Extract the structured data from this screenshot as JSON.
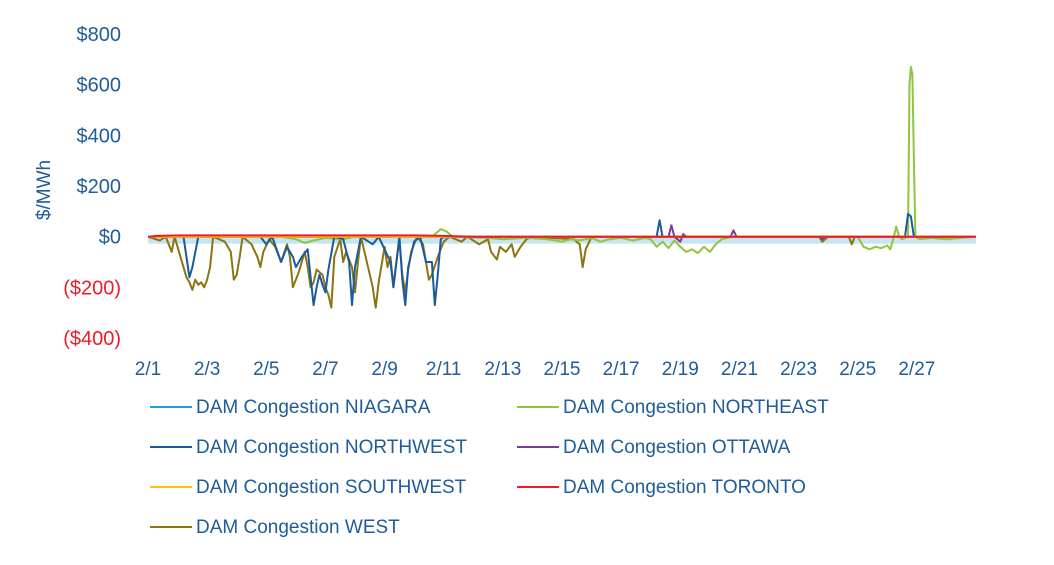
{
  "chart_data": {
    "type": "line",
    "ylabel": "$/MWh",
    "xlabel": "",
    "ylim": [
      -400,
      800
    ],
    "x_start_label": "2/1",
    "x_end_day": 29,
    "colors": {
      "positive_tick": "#1f5c99",
      "negative_tick": "#ee1c25",
      "axis_text": "#1f5c99",
      "zero_band": "#c6e4f2"
    },
    "yticks": [
      {
        "value": 800,
        "label": "$800"
      },
      {
        "value": 600,
        "label": "$600"
      },
      {
        "value": 400,
        "label": "$400"
      },
      {
        "value": 200,
        "label": "$200"
      },
      {
        "value": 0,
        "label": "$0"
      },
      {
        "value": -200,
        "label": "($200)"
      },
      {
        "value": -400,
        "label": "($400)"
      }
    ],
    "xticks": [
      {
        "day": 1,
        "label": "2/1"
      },
      {
        "day": 3,
        "label": "2/3"
      },
      {
        "day": 5,
        "label": "2/5"
      },
      {
        "day": 7,
        "label": "2/7"
      },
      {
        "day": 9,
        "label": "2/9"
      },
      {
        "day": 11,
        "label": "2/11"
      },
      {
        "day": 13,
        "label": "2/13"
      },
      {
        "day": 15,
        "label": "2/15"
      },
      {
        "day": 17,
        "label": "2/17"
      },
      {
        "day": 19,
        "label": "2/19"
      },
      {
        "day": 21,
        "label": "2/21"
      },
      {
        "day": 23,
        "label": "2/23"
      },
      {
        "day": 25,
        "label": "2/25"
      },
      {
        "day": 27,
        "label": "2/27"
      }
    ],
    "series": [
      {
        "name": "DAM Congestion NIAGARA",
        "color": "#1ea0e0",
        "points": [
          [
            1,
            0
          ],
          [
            11,
            0
          ],
          [
            11.1,
            -5
          ],
          [
            11.3,
            0
          ],
          [
            20,
            0
          ],
          [
            29,
            0
          ]
        ]
      },
      {
        "name": "DAM Congestion NORTHEAST",
        "color": "#8dc63f",
        "points": [
          [
            1,
            0
          ],
          [
            5.5,
            0
          ],
          [
            6,
            -10
          ],
          [
            6.3,
            -25
          ],
          [
            6.6,
            -15
          ],
          [
            7,
            -5
          ],
          [
            7.6,
            -10
          ],
          [
            8,
            0
          ],
          [
            10.6,
            0
          ],
          [
            10.9,
            30
          ],
          [
            11.1,
            20
          ],
          [
            11.3,
            0
          ],
          [
            12.5,
            -5
          ],
          [
            13,
            -10
          ],
          [
            13.8,
            -5
          ],
          [
            14.5,
            -10
          ],
          [
            15,
            -20
          ],
          [
            15.3,
            -10
          ],
          [
            15.6,
            -15
          ],
          [
            16,
            -5
          ],
          [
            16.3,
            -20
          ],
          [
            16.6,
            -10
          ],
          [
            17,
            -5
          ],
          [
            17.4,
            -15
          ],
          [
            17.8,
            -5
          ],
          [
            18,
            -10
          ],
          [
            18.2,
            -40
          ],
          [
            18.4,
            -20
          ],
          [
            18.6,
            -45
          ],
          [
            18.8,
            -15
          ],
          [
            19,
            -40
          ],
          [
            19.2,
            -60
          ],
          [
            19.4,
            -50
          ],
          [
            19.6,
            -65
          ],
          [
            19.8,
            -40
          ],
          [
            20,
            -60
          ],
          [
            20.2,
            -30
          ],
          [
            20.4,
            -10
          ],
          [
            20.8,
            0
          ],
          [
            25,
            0
          ],
          [
            25.2,
            -40
          ],
          [
            25.4,
            -50
          ],
          [
            25.6,
            -40
          ],
          [
            25.8,
            -45
          ],
          [
            26,
            -35
          ],
          [
            26.1,
            -50
          ],
          [
            26.2,
            -10
          ],
          [
            26.3,
            40
          ],
          [
            26.4,
            0
          ],
          [
            26.5,
            -10
          ],
          [
            26.6,
            -5
          ],
          [
            26.7,
            0
          ],
          [
            26.75,
            600
          ],
          [
            26.8,
            670
          ],
          [
            26.85,
            640
          ],
          [
            26.9,
            300
          ],
          [
            26.95,
            0
          ],
          [
            27.1,
            -10
          ],
          [
            27.5,
            -5
          ],
          [
            28,
            -10
          ],
          [
            28.5,
            -5
          ],
          [
            29,
            0
          ]
        ]
      },
      {
        "name": "DAM Congestion NORTHWEST",
        "color": "#1a5a9e",
        "points": [
          [
            1,
            0
          ],
          [
            2.2,
            0
          ],
          [
            2.4,
            -160
          ],
          [
            2.5,
            -120
          ],
          [
            2.7,
            0
          ],
          [
            4.8,
            0
          ],
          [
            5,
            -30
          ],
          [
            5.2,
            0
          ],
          [
            5.5,
            -100
          ],
          [
            5.7,
            -40
          ],
          [
            5.9,
            -80
          ],
          [
            6,
            -120
          ],
          [
            6.2,
            -80
          ],
          [
            6.4,
            -50
          ],
          [
            6.5,
            -160
          ],
          [
            6.6,
            -270
          ],
          [
            6.7,
            -200
          ],
          [
            6.8,
            -150
          ],
          [
            6.9,
            -190
          ],
          [
            7,
            -220
          ],
          [
            7.1,
            -130
          ],
          [
            7.3,
            0
          ],
          [
            7.6,
            -10
          ],
          [
            7.8,
            -100
          ],
          [
            7.9,
            -270
          ],
          [
            8,
            -120
          ],
          [
            8.2,
            0
          ],
          [
            8.6,
            -30
          ],
          [
            8.8,
            0
          ],
          [
            9.2,
            -100
          ],
          [
            9.3,
            -200
          ],
          [
            9.5,
            0
          ],
          [
            9.6,
            -170
          ],
          [
            9.7,
            -270
          ],
          [
            9.8,
            -120
          ],
          [
            10,
            -20
          ],
          [
            10.2,
            0
          ],
          [
            10.4,
            -100
          ],
          [
            10.6,
            -100
          ],
          [
            10.7,
            -270
          ],
          [
            10.8,
            -150
          ],
          [
            10.9,
            -10
          ],
          [
            11,
            0
          ],
          [
            18.2,
            0
          ],
          [
            18.3,
            65
          ],
          [
            18.4,
            0
          ],
          [
            26,
            0
          ],
          [
            26.6,
            0
          ],
          [
            26.7,
            90
          ],
          [
            26.8,
            80
          ],
          [
            26.9,
            0
          ],
          [
            29,
            0
          ]
        ]
      },
      {
        "name": "DAM Congestion OTTAWA",
        "color": "#7a3b98",
        "points": [
          [
            1,
            0
          ],
          [
            18.6,
            0
          ],
          [
            18.7,
            45
          ],
          [
            18.8,
            0
          ],
          [
            19,
            -20
          ],
          [
            19.1,
            10
          ],
          [
            19.2,
            0
          ],
          [
            20.7,
            0
          ],
          [
            20.8,
            25
          ],
          [
            20.9,
            0
          ],
          [
            23.7,
            0
          ],
          [
            23.8,
            -10
          ],
          [
            23.9,
            0
          ],
          [
            29,
            0
          ]
        ]
      },
      {
        "name": "DAM Congestion SOUTHWEST",
        "color": "#ffc20e",
        "points": [
          [
            1,
            0
          ],
          [
            29,
            0
          ]
        ]
      },
      {
        "name": "DAM Congestion TORONTO",
        "color": "#ee1c25",
        "points": [
          [
            1,
            0
          ],
          [
            1.3,
            3
          ],
          [
            2,
            5
          ],
          [
            3,
            5
          ],
          [
            4,
            5
          ],
          [
            5,
            5
          ],
          [
            6,
            5
          ],
          [
            7,
            5
          ],
          [
            8,
            5
          ],
          [
            9,
            5
          ],
          [
            10,
            5
          ],
          [
            11,
            3
          ],
          [
            12,
            0
          ],
          [
            29,
            0
          ]
        ]
      },
      {
        "name": "DAM Congestion WEST",
        "color": "#8b7512",
        "points": [
          [
            1,
            0
          ],
          [
            1.4,
            -15
          ],
          [
            1.6,
            0
          ],
          [
            1.8,
            -60
          ],
          [
            1.9,
            0
          ],
          [
            2.3,
            -160
          ],
          [
            2.4,
            -180
          ],
          [
            2.5,
            -210
          ],
          [
            2.6,
            -170
          ],
          [
            2.7,
            -190
          ],
          [
            2.8,
            -180
          ],
          [
            2.9,
            -200
          ],
          [
            3,
            -170
          ],
          [
            3.1,
            -120
          ],
          [
            3.2,
            0
          ],
          [
            3.6,
            -20
          ],
          [
            3.8,
            -60
          ],
          [
            3.9,
            -170
          ],
          [
            4,
            -150
          ],
          [
            4.1,
            -80
          ],
          [
            4.2,
            0
          ],
          [
            4.5,
            -30
          ],
          [
            4.7,
            -80
          ],
          [
            4.8,
            -120
          ],
          [
            4.9,
            -60
          ],
          [
            5.1,
            -10
          ],
          [
            5.3,
            -40
          ],
          [
            5.5,
            -100
          ],
          [
            5.7,
            -30
          ],
          [
            5.8,
            -80
          ],
          [
            5.9,
            -200
          ],
          [
            6.1,
            -140
          ],
          [
            6.3,
            -60
          ],
          [
            6.4,
            -120
          ],
          [
            6.5,
            -200
          ],
          [
            6.6,
            -180
          ],
          [
            6.7,
            -130
          ],
          [
            6.9,
            -150
          ],
          [
            7,
            -200
          ],
          [
            7.1,
            -230
          ],
          [
            7.2,
            -280
          ],
          [
            7.3,
            -80
          ],
          [
            7.5,
            -10
          ],
          [
            7.6,
            -100
          ],
          [
            7.7,
            -60
          ],
          [
            7.9,
            -120
          ],
          [
            8,
            -220
          ],
          [
            8.1,
            -100
          ],
          [
            8.2,
            0
          ],
          [
            8.5,
            -150
          ],
          [
            8.6,
            -200
          ],
          [
            8.7,
            -280
          ],
          [
            8.8,
            -180
          ],
          [
            9,
            -40
          ],
          [
            9.1,
            -120
          ],
          [
            9.2,
            -80
          ],
          [
            9.3,
            -200
          ],
          [
            9.4,
            -100
          ],
          [
            9.5,
            -10
          ],
          [
            9.6,
            -150
          ],
          [
            9.7,
            -220
          ],
          [
            9.8,
            -130
          ],
          [
            9.9,
            -60
          ],
          [
            10.1,
            0
          ],
          [
            10.3,
            -30
          ],
          [
            10.5,
            -170
          ],
          [
            10.6,
            -150
          ],
          [
            10.8,
            -80
          ],
          [
            11,
            -20
          ],
          [
            11.2,
            0
          ],
          [
            11.6,
            -20
          ],
          [
            11.8,
            0
          ],
          [
            12.2,
            -30
          ],
          [
            12.5,
            -10
          ],
          [
            12.6,
            -60
          ],
          [
            12.8,
            -90
          ],
          [
            12.9,
            -40
          ],
          [
            13.1,
            -60
          ],
          [
            13.3,
            -30
          ],
          [
            13.4,
            -80
          ],
          [
            13.6,
            -40
          ],
          [
            13.8,
            -10
          ],
          [
            14,
            0
          ],
          [
            15.4,
            -10
          ],
          [
            15.6,
            -30
          ],
          [
            15.7,
            -120
          ],
          [
            15.8,
            -50
          ],
          [
            16,
            0
          ],
          [
            23.7,
            0
          ],
          [
            23.8,
            -20
          ],
          [
            23.9,
            -10
          ],
          [
            24,
            0
          ],
          [
            24.7,
            0
          ],
          [
            24.8,
            -30
          ],
          [
            24.9,
            0
          ],
          [
            29,
            0
          ]
        ]
      }
    ]
  }
}
